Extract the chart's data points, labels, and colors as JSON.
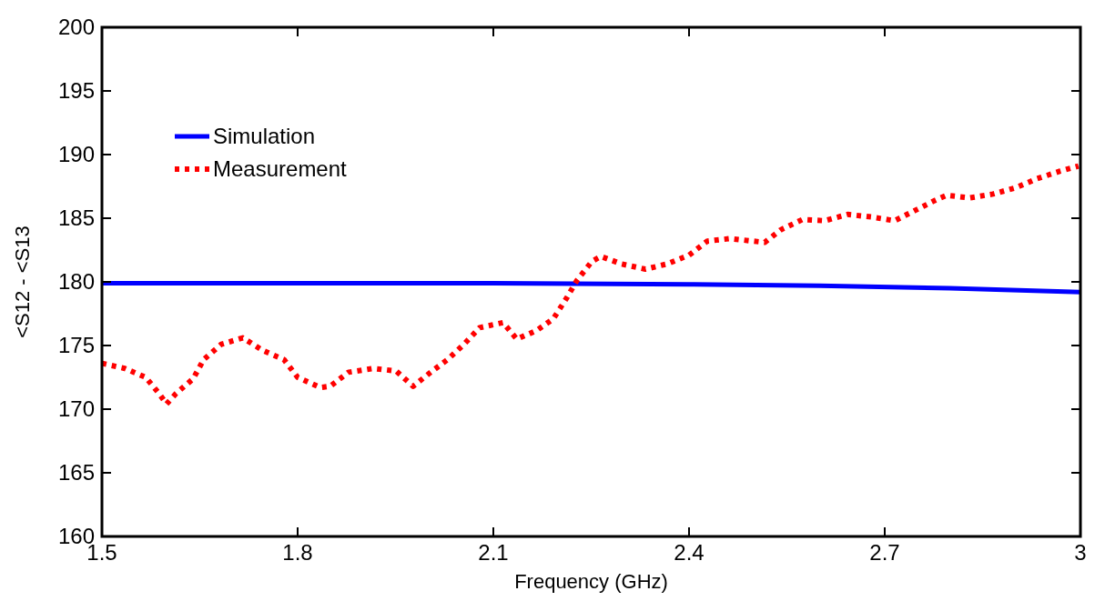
{
  "chart_data": {
    "type": "line",
    "xlabel": "Frequency (GHz)",
    "ylabel": "<S12 - <S13",
    "xlim": [
      1.5,
      3
    ],
    "xticks": [
      1.5,
      1.8,
      2.1,
      2.4,
      2.7,
      3
    ],
    "ylim": [
      160,
      200
    ],
    "yticks": [
      160,
      165,
      170,
      175,
      180,
      185,
      190,
      195,
      200
    ],
    "grid": false,
    "legend": "top left",
    "series": [
      {
        "name": "Simulation",
        "color": "#0000ff",
        "line_style": "solid",
        "x": [
          1.5,
          1.8,
          2.1,
          2.4,
          2.6,
          2.8,
          3.0
        ],
        "values": [
          179.9,
          179.9,
          179.9,
          179.8,
          179.7,
          179.5,
          179.2
        ]
      },
      {
        "name": "Measurement",
        "color": "#ff0000",
        "line_style": "dotted",
        "x": [
          1.5,
          1.535,
          1.567,
          1.588,
          1.599,
          1.613,
          1.64,
          1.656,
          1.683,
          1.716,
          1.747,
          1.779,
          1.8,
          1.835,
          1.85,
          1.878,
          1.916,
          1.951,
          1.977,
          2.004,
          2.03,
          2.055,
          2.079,
          2.115,
          2.136,
          2.167,
          2.192,
          2.212,
          2.228,
          2.251,
          2.265,
          2.297,
          2.333,
          2.366,
          2.4,
          2.428,
          2.463,
          2.498,
          2.516,
          2.541,
          2.574,
          2.608,
          2.643,
          2.679,
          2.715,
          2.746,
          2.777,
          2.795,
          2.83,
          2.866,
          2.901,
          2.933,
          2.969,
          2.997
        ],
        "values": [
          173.6,
          173.2,
          172.5,
          171.2,
          170.4,
          171.2,
          172.4,
          173.9,
          175.1,
          175.6,
          174.6,
          173.9,
          172.5,
          171.7,
          171.8,
          172.9,
          173.2,
          173.0,
          171.8,
          172.9,
          173.9,
          175.1,
          176.4,
          176.8,
          175.5,
          176.2,
          177.1,
          178.7,
          180.1,
          181.6,
          182.0,
          181.4,
          181.0,
          181.4,
          182.1,
          183.2,
          183.4,
          183.2,
          183.1,
          184.1,
          184.9,
          184.8,
          185.3,
          185.1,
          184.8,
          185.6,
          186.4,
          186.8,
          186.6,
          186.9,
          187.4,
          188.1,
          188.7,
          189.1
        ]
      }
    ]
  }
}
